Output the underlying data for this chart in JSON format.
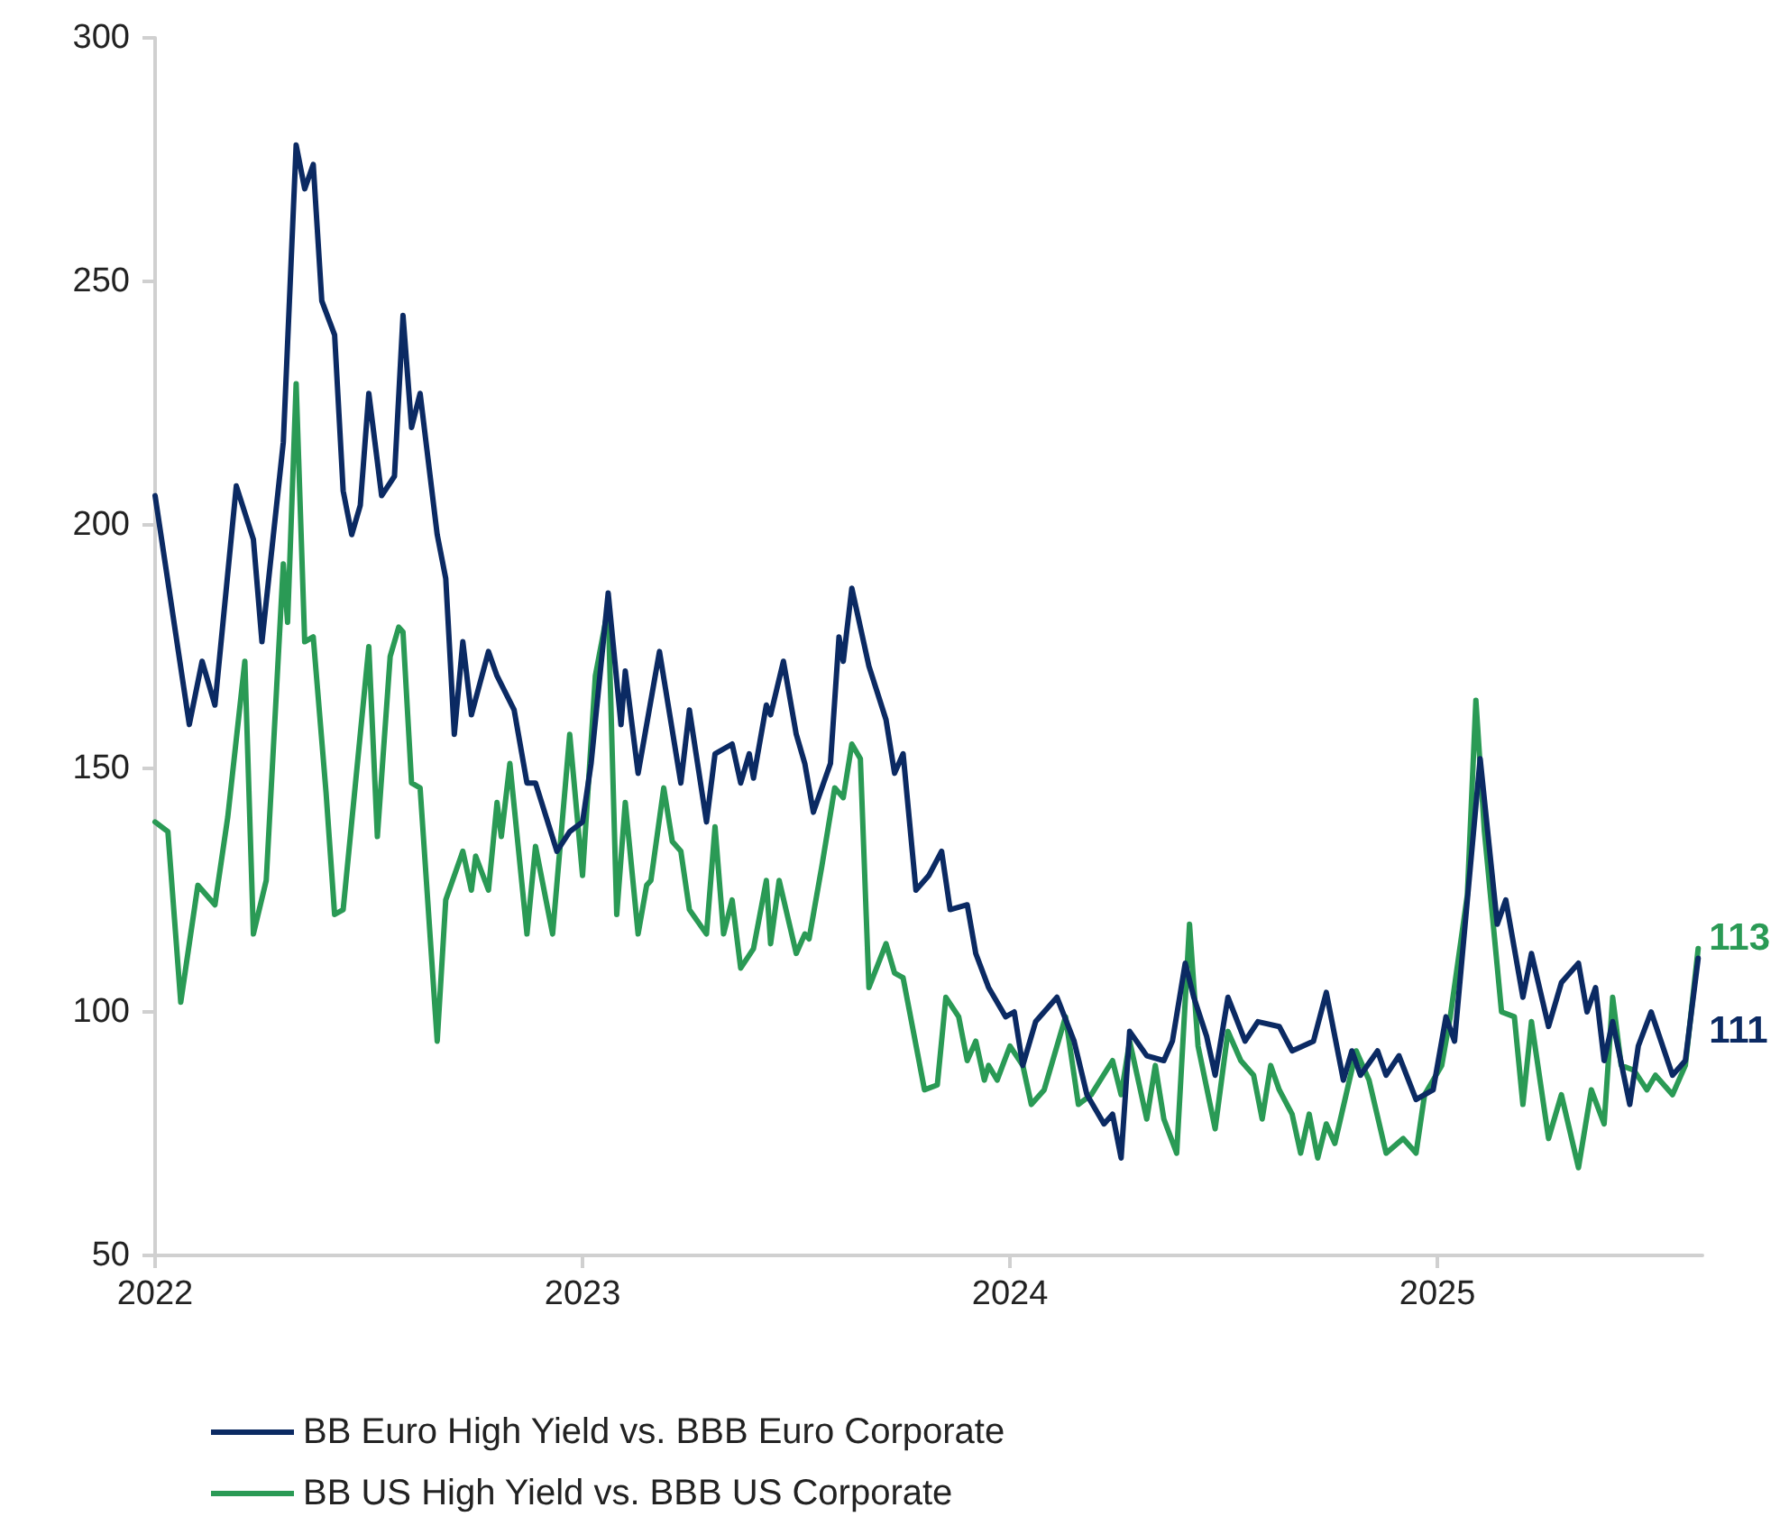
{
  "chart_data": {
    "type": "line",
    "xlim": [
      2022,
      2025.62
    ],
    "xticks": [
      2022,
      2023,
      2024,
      2025
    ],
    "ylim": [
      50,
      300
    ],
    "yticks": [
      50,
      100,
      150,
      200,
      250,
      300
    ],
    "grid": false,
    "legend": "bottom",
    "marker": "none",
    "line_style": "solid",
    "series": [
      {
        "name": "BB Euro High Yield vs. BBB Euro Corporate",
        "color": "#0b2a63",
        "x": [
          2022.0,
          2022.08,
          2022.11,
          2022.14,
          2022.19,
          2022.23,
          2022.25,
          2022.3,
          2022.33,
          2022.35,
          2022.37,
          2022.39,
          2022.42,
          2022.44,
          2022.46,
          2022.48,
          2022.5,
          2022.53,
          2022.56,
          2022.58,
          2022.6,
          2022.62,
          2022.66,
          2022.68,
          2022.7,
          2022.72,
          2022.74,
          2022.78,
          2022.8,
          2022.84,
          2022.87,
          2022.89,
          2022.94,
          2022.97,
          2023.0,
          2023.02,
          2023.06,
          2023.09,
          2023.1,
          2023.13,
          2023.18,
          2023.23,
          2023.25,
          2023.29,
          2023.31,
          2023.35,
          2023.37,
          2023.39,
          2023.4,
          2023.43,
          2023.44,
          2023.47,
          2023.5,
          2023.52,
          2023.54,
          2023.58,
          2023.6,
          2023.61,
          2023.63,
          2023.67,
          2023.71,
          2023.73,
          2023.75,
          2023.78,
          2023.81,
          2023.84,
          2023.86,
          2023.9,
          2023.92,
          2023.95,
          2023.99,
          2024.01,
          2024.03,
          2024.06,
          2024.11,
          2024.15,
          2024.18,
          2024.22,
          2024.24,
          2024.26,
          2024.28,
          2024.32,
          2024.36,
          2024.38,
          2024.41,
          2024.43,
          2024.46,
          2024.48,
          2024.51,
          2024.55,
          2024.58,
          2024.63,
          2024.66,
          2024.71,
          2024.74,
          2024.78,
          2024.8,
          2024.82,
          2024.86,
          2024.88,
          2024.91,
          2024.95,
          2024.99,
          2025.02,
          2025.04,
          2025.07,
          2025.1,
          2025.14,
          2025.16,
          2025.2,
          2025.22,
          2025.26,
          2025.29,
          2025.33,
          2025.35,
          2025.37,
          2025.39,
          2025.41,
          2025.45,
          2025.47,
          2025.5,
          2025.55,
          2025.58,
          2025.61
        ],
        "values": [
          206,
          159,
          172,
          163,
          208,
          197,
          176,
          217,
          278,
          269,
          274,
          246,
          239,
          207,
          198,
          204,
          227,
          206,
          210,
          243,
          220,
          227,
          198,
          189,
          157,
          176,
          161,
          174,
          169,
          162,
          147,
          147,
          133,
          137,
          139,
          151,
          186,
          159,
          170,
          149,
          174,
          147,
          162,
          139,
          153,
          155,
          147,
          153,
          148,
          163,
          161,
          172,
          157,
          151,
          141,
          151,
          177,
          172,
          187,
          171,
          160,
          149,
          153,
          125,
          128,
          133,
          121,
          122,
          112,
          105,
          99,
          100,
          89,
          98,
          103,
          94,
          83,
          77,
          79,
          70,
          96,
          91,
          90,
          94,
          110,
          103,
          95,
          87,
          103,
          94,
          98,
          97,
          92,
          94,
          104,
          86,
          92,
          87,
          92,
          87,
          91,
          82,
          84,
          99,
          94,
          123,
          152,
          118,
          123,
          103,
          112,
          97,
          106,
          110,
          100,
          105,
          90,
          98,
          81,
          93,
          100,
          87,
          90,
          111
        ],
        "value_labels": [
          null,
          null,
          null,
          null,
          null,
          null,
          null,
          null,
          null,
          null,
          null,
          null,
          null,
          null,
          null,
          null,
          null,
          null,
          null,
          null,
          null,
          null,
          null,
          null,
          null,
          null,
          null,
          null,
          null,
          null,
          null,
          null,
          null,
          null,
          null,
          null,
          null,
          null,
          null,
          null,
          null,
          null,
          null,
          null,
          null,
          null,
          null,
          null,
          null,
          null,
          null,
          null,
          null,
          null,
          null,
          null,
          null,
          null,
          null,
          null,
          null,
          null,
          null,
          null,
          null,
          null,
          null,
          null,
          null,
          null,
          null,
          null,
          null,
          null,
          null,
          null,
          null,
          null,
          null,
          null,
          null,
          null,
          null,
          null,
          null,
          null,
          null,
          null,
          null,
          null,
          null,
          null,
          null,
          null,
          null,
          null,
          null,
          null,
          null,
          null,
          null,
          null,
          null,
          null,
          null,
          null,
          null,
          null,
          null,
          null,
          null,
          null,
          null,
          null,
          null,
          null,
          null,
          null,
          null,
          null,
          null,
          null,
          null,
          "111"
        ]
      },
      {
        "name": "BB US High Yield vs. BBB US Corporate",
        "color": "#2a9a55",
        "x": [
          2022.0,
          2022.03,
          2022.06,
          2022.1,
          2022.14,
          2022.17,
          2022.21,
          2022.23,
          2022.26,
          2022.3,
          2022.31,
          2022.33,
          2022.35,
          2022.37,
          2022.4,
          2022.42,
          2022.44,
          2022.5,
          2022.52,
          2022.55,
          2022.57,
          2022.58,
          2022.6,
          2022.62,
          2022.66,
          2022.68,
          2022.72,
          2022.74,
          2022.75,
          2022.78,
          2022.8,
          2022.81,
          2022.83,
          2022.87,
          2022.89,
          2022.93,
          2022.97,
          2023.0,
          2023.03,
          2023.06,
          2023.08,
          2023.1,
          2023.13,
          2023.15,
          2023.16,
          2023.19,
          2023.21,
          2023.23,
          2023.25,
          2023.29,
          2023.31,
          2023.33,
          2023.35,
          2023.37,
          2023.4,
          2023.43,
          2023.44,
          2023.46,
          2023.5,
          2023.52,
          2023.53,
          2023.56,
          2023.59,
          2023.61,
          2023.63,
          2023.65,
          2023.67,
          2023.71,
          2023.73,
          2023.75,
          2023.8,
          2023.83,
          2023.85,
          2023.88,
          2023.9,
          2023.92,
          2023.94,
          2023.95,
          2023.97,
          2024.0,
          2024.03,
          2024.05,
          2024.08,
          2024.13,
          2024.16,
          2024.19,
          2024.24,
          2024.26,
          2024.28,
          2024.32,
          2024.34,
          2024.36,
          2024.39,
          2024.42,
          2024.44,
          2024.48,
          2024.51,
          2024.54,
          2024.57,
          2024.59,
          2024.61,
          2024.63,
          2024.66,
          2024.68,
          2024.7,
          2024.72,
          2024.74,
          2024.76,
          2024.81,
          2024.84,
          2024.88,
          2024.92,
          2024.95,
          2024.97,
          2025.01,
          2025.03,
          2025.07,
          2025.09,
          2025.11,
          2025.15,
          2025.18,
          2025.2,
          2025.22,
          2025.26,
          2025.29,
          2025.33,
          2025.36,
          2025.39,
          2025.41,
          2025.43,
          2025.46,
          2025.49,
          2025.51,
          2025.55,
          2025.58,
          2025.61
        ],
        "values": [
          139,
          137,
          102,
          126,
          122,
          140,
          172,
          116,
          127,
          192,
          180,
          229,
          176,
          177,
          145,
          120,
          121,
          175,
          136,
          173,
          179,
          178,
          147,
          146,
          94,
          123,
          133,
          125,
          132,
          125,
          143,
          136,
          151,
          116,
          134,
          116,
          157,
          128,
          169,
          183,
          120,
          143,
          116,
          126,
          127,
          146,
          135,
          133,
          121,
          116,
          138,
          116,
          123,
          109,
          113,
          127,
          114,
          127,
          112,
          116,
          115,
          130,
          146,
          144,
          155,
          152,
          105,
          114,
          108,
          107,
          84,
          85,
          103,
          99,
          90,
          94,
          86,
          89,
          86,
          93,
          89,
          81,
          84,
          99,
          81,
          83,
          90,
          83,
          94,
          78,
          89,
          78,
          71,
          118,
          93,
          76,
          96,
          90,
          87,
          78,
          89,
          84,
          79,
          71,
          79,
          70,
          77,
          73,
          92,
          86,
          71,
          74,
          71,
          83,
          89,
          99,
          124,
          164,
          137,
          100,
          99,
          81,
          98,
          74,
          83,
          68,
          84,
          77,
          103,
          89,
          88,
          84,
          87,
          83,
          89,
          113
        ],
        "value_labels": [
          null,
          null,
          null,
          null,
          null,
          null,
          null,
          null,
          null,
          null,
          null,
          null,
          null,
          null,
          null,
          null,
          null,
          null,
          null,
          null,
          null,
          null,
          null,
          null,
          null,
          null,
          null,
          null,
          null,
          null,
          null,
          null,
          null,
          null,
          null,
          null,
          null,
          null,
          null,
          null,
          null,
          null,
          null,
          null,
          null,
          null,
          null,
          null,
          null,
          null,
          null,
          null,
          null,
          null,
          null,
          null,
          null,
          null,
          null,
          null,
          null,
          null,
          null,
          null,
          null,
          null,
          null,
          null,
          null,
          null,
          null,
          null,
          null,
          null,
          null,
          null,
          null,
          null,
          null,
          null,
          null,
          null,
          null,
          null,
          null,
          null,
          null,
          null,
          null,
          null,
          null,
          null,
          null,
          null,
          null,
          null,
          null,
          null,
          null,
          null,
          null,
          null,
          null,
          null,
          null,
          null,
          null,
          null,
          null,
          null,
          null,
          null,
          null,
          null,
          null,
          null,
          null,
          null,
          null,
          null,
          null,
          null,
          null,
          null,
          null,
          null,
          null,
          null,
          null,
          null,
          null,
          null,
          null,
          null,
          null,
          "113"
        ]
      }
    ]
  }
}
